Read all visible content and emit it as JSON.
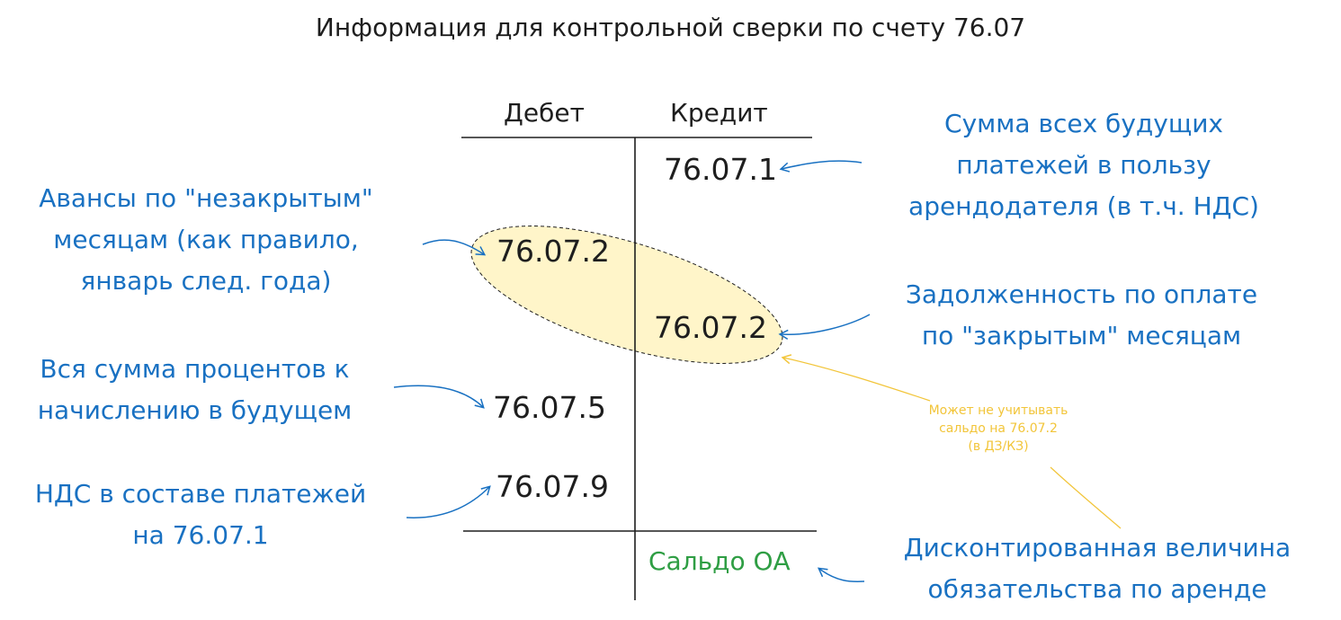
{
  "title": "Информация для контрольной сверки по счету 76.07",
  "headers": {
    "debit": "Дебет",
    "credit": "Кредит"
  },
  "accounts": {
    "credit_76071": "76.07.1",
    "debit_76072": "76.07.2",
    "credit_76072": "76.07.2",
    "debit_76075": "76.07.5",
    "debit_76079": "76.07.9",
    "balance": "Сальдо ОА"
  },
  "notes": {
    "future_payments": [
      "Сумма всех будущих",
      "платежей в пользу",
      "арендодателя (в т.ч. НДС)"
    ],
    "advances": [
      "Авансы по \"незакрытым\"",
      "месяцам (как правило,",
      "январь след. года)"
    ],
    "debt": [
      "Задолженность по оплате",
      "по \"закрытым\" месяцам"
    ],
    "interest": [
      "Вся сумма процентов к",
      "начислению в будущем"
    ],
    "vat": [
      "НДС в составе платежей",
      "на 76.07.1"
    ],
    "may_ignore": [
      "Может не учитывать",
      "сальдо на 76.07.2",
      "(в ДЗ/КЗ)"
    ],
    "discounted": [
      "Дисконтированная величина",
      "обязательства по аренде"
    ]
  },
  "colors": {
    "ink": "#1e1e1e",
    "blue": "#1971c2",
    "yellow": "#f2c53a",
    "green": "#2f9e44",
    "ellipse_fill": "#fff3bf"
  }
}
